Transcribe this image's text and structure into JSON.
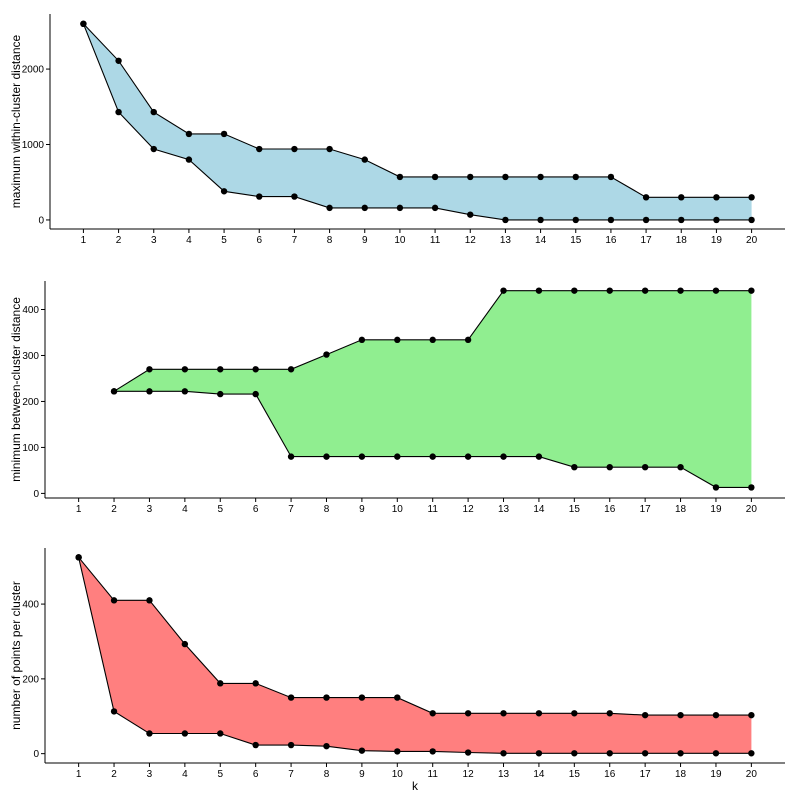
{
  "chart_data": [
    {
      "type": "area",
      "ylabel": "maximum within-cluster distance",
      "xlabel": "",
      "fill": "#add8e6",
      "x": [
        1,
        2,
        3,
        4,
        5,
        6,
        7,
        8,
        9,
        10,
        11,
        12,
        13,
        14,
        15,
        16,
        17,
        18,
        19,
        20
      ],
      "upper": [
        2600,
        2110,
        1430,
        1140,
        1140,
        940,
        940,
        940,
        800,
        570,
        570,
        570,
        570,
        570,
        570,
        570,
        300,
        300,
        300,
        300
      ],
      "lower": [
        2600,
        1430,
        940,
        800,
        380,
        310,
        310,
        160,
        160,
        160,
        160,
        70,
        0,
        0,
        0,
        0,
        0,
        0,
        0,
        0
      ],
      "xlim": [
        0.05,
        20.95
      ],
      "ylim": [
        -120,
        2730
      ],
      "yticks": [
        0,
        1000,
        2000
      ],
      "xticks": [
        1,
        2,
        3,
        4,
        5,
        6,
        7,
        8,
        9,
        10,
        11,
        12,
        13,
        14,
        15,
        16,
        17,
        18,
        19,
        20
      ]
    },
    {
      "type": "area",
      "ylabel": "minimum between-cluster distance",
      "xlabel": "",
      "fill": "#90ee90",
      "x": [
        2,
        3,
        4,
        5,
        6,
        7,
        8,
        9,
        10,
        11,
        12,
        13,
        14,
        15,
        16,
        17,
        18,
        19,
        20
      ],
      "upper": [
        222,
        270,
        270,
        270,
        270,
        270,
        302,
        334,
        334,
        334,
        334,
        441,
        441,
        441,
        441,
        441,
        441,
        441,
        441
      ],
      "lower": [
        222,
        222,
        222,
        216,
        216,
        80,
        80,
        80,
        80,
        80,
        80,
        80,
        80,
        57,
        57,
        57,
        57,
        13,
        13
      ],
      "xlim": [
        0.05,
        20.95
      ],
      "ylim": [
        -10,
        462
      ],
      "yticks": [
        0,
        100,
        200,
        300,
        400
      ],
      "xticks": [
        1,
        2,
        3,
        4,
        5,
        6,
        7,
        8,
        9,
        10,
        11,
        12,
        13,
        14,
        15,
        16,
        17,
        18,
        19,
        20
      ]
    },
    {
      "type": "area",
      "ylabel": "number of points per cluster",
      "xlabel": "k",
      "fill": "#ff7f7f",
      "x": [
        1,
        2,
        3,
        4,
        5,
        6,
        7,
        8,
        9,
        10,
        11,
        12,
        13,
        14,
        15,
        16,
        17,
        18,
        19,
        20
      ],
      "upper": [
        525,
        410,
        410,
        293,
        188,
        188,
        150,
        150,
        150,
        150,
        108,
        108,
        108,
        108,
        108,
        108,
        103,
        103,
        103,
        103
      ],
      "lower": [
        525,
        113,
        54,
        54,
        54,
        23,
        23,
        20,
        8,
        6,
        6,
        3,
        1,
        1,
        1,
        1,
        1,
        1,
        1,
        1
      ],
      "xlim": [
        0.05,
        20.95
      ],
      "ylim": [
        -25,
        550
      ],
      "yticks": [
        0,
        200,
        400
      ],
      "xticks": [
        1,
        2,
        3,
        4,
        5,
        6,
        7,
        8,
        9,
        10,
        11,
        12,
        13,
        14,
        15,
        16,
        17,
        18,
        19,
        20
      ]
    }
  ]
}
